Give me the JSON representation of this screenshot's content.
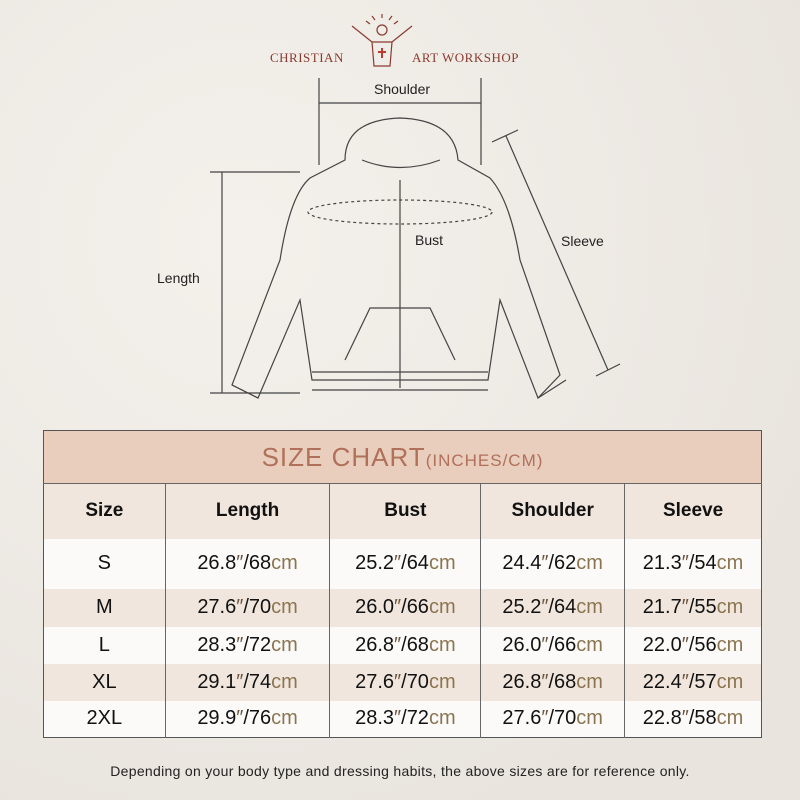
{
  "brand": {
    "left": "CHRISTIAN",
    "right": "ART WORKSHOP"
  },
  "diagram": {
    "shoulder": "Shoulder",
    "bust": "Bust",
    "sleeve": "Sleeve",
    "length": "Length"
  },
  "table": {
    "title": "SIZE CHART",
    "title_units": "(INCHES/CM)",
    "headers": [
      "Size",
      "Length",
      "Bust",
      "Shoulder",
      "Sleeve"
    ],
    "rows": [
      {
        "size": "S",
        "values": [
          [
            "26.8",
            "68"
          ],
          [
            "25.2",
            "64"
          ],
          [
            "24.4",
            "62"
          ],
          [
            "21.3",
            "54"
          ]
        ]
      },
      {
        "size": "M",
        "values": [
          [
            "27.6",
            "70"
          ],
          [
            "26.0",
            "66"
          ],
          [
            "25.2",
            "64"
          ],
          [
            "21.7",
            "55"
          ]
        ]
      },
      {
        "size": "L",
        "values": [
          [
            "28.3",
            "72"
          ],
          [
            "26.8",
            "68"
          ],
          [
            "26.0",
            "66"
          ],
          [
            "22.0",
            "56"
          ]
        ]
      },
      {
        "size": "XL",
        "values": [
          [
            "29.1",
            "74"
          ],
          [
            "27.6",
            "70"
          ],
          [
            "26.8",
            "68"
          ],
          [
            "22.4",
            "57"
          ]
        ]
      },
      {
        "size": "2XL",
        "values": [
          [
            "29.9",
            "76"
          ],
          [
            "28.3",
            "72"
          ],
          [
            "27.6",
            "70"
          ],
          [
            "22.8",
            "58"
          ]
        ]
      }
    ],
    "inch_mark": "″",
    "cm_unit": "cm"
  },
  "note": "Depending on your body type and dressing habits, the above sizes are for reference only.",
  "colors": {
    "header_band": "#e9cdbd",
    "title": "#b0705a",
    "row_alt": "#f1e6dd",
    "cm": "#8b7550",
    "brand": "#8a3b30"
  }
}
